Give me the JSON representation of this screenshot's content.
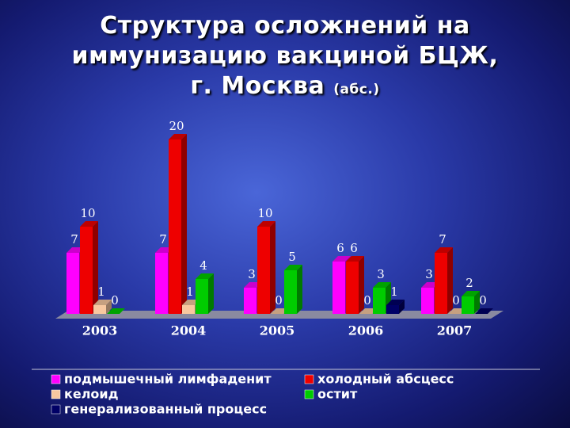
{
  "chart_data": {
    "type": "bar",
    "title": "Структура осложнений на иммунизацию вакциной БЦЖ, г. Москва",
    "unit": "(абс.)",
    "categories": [
      "2003",
      "2004",
      "2005",
      "2006",
      "2007"
    ],
    "series": [
      {
        "name": "подмышечный лимфаденит",
        "color": "#ff00ff",
        "values": [
          7,
          7,
          3,
          6,
          3
        ]
      },
      {
        "name": "холодный абсцесс",
        "color": "#ee0000",
        "values": [
          10,
          20,
          10,
          6,
          7
        ]
      },
      {
        "name": "келоид",
        "color": "#f8c8a0",
        "values": [
          1,
          1,
          0,
          0,
          0
        ]
      },
      {
        "name": "остит",
        "color": "#00cc00",
        "values": [
          0,
          4,
          5,
          3,
          2
        ]
      },
      {
        "name": "генерализованный процесс",
        "color": "#000066",
        "values": [
          null,
          null,
          null,
          1,
          0
        ]
      }
    ]
  }
}
